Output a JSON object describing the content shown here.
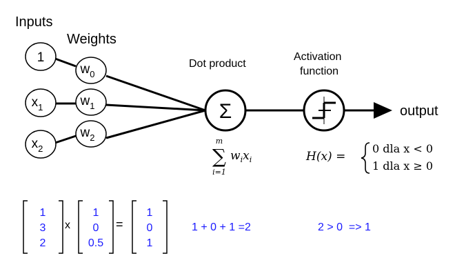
{
  "labels": {
    "inputs": "Inputs",
    "weights": "Weights",
    "dot_product": "Dot product",
    "activation_line1": "Activation",
    "activation_line2": "function",
    "output": "output"
  },
  "inputs": [
    {
      "base": "1",
      "sub": ""
    },
    {
      "base": "x",
      "sub": "1"
    },
    {
      "base": "x",
      "sub": "2"
    }
  ],
  "weights": [
    {
      "base": "w",
      "sub": "0"
    },
    {
      "base": "w",
      "sub": "1"
    },
    {
      "base": "w",
      "sub": "2"
    }
  ],
  "sum_symbol": "Σ",
  "formula_sum": {
    "upper": "m",
    "sigma": "∑",
    "lower": "i=1",
    "term_w": "w",
    "term_w_sub": "i",
    "term_x": "x",
    "term_x_sub": "i"
  },
  "formula_h": {
    "lhs": "H(x) =",
    "case1": "0 dla x < 0",
    "case2": "1 dla x ≥ 0"
  },
  "example": {
    "vector_a": [
      "1",
      "3",
      "2"
    ],
    "operator_x": "x",
    "vector_b": [
      "1",
      "0",
      "0.5"
    ],
    "operator_eq": "=",
    "vector_c": [
      "1",
      "0",
      "1"
    ],
    "sum_text": "1 + 0 + 1 =2",
    "compare_text": "2 > 0  => 1"
  },
  "colors": {
    "line": "#000000",
    "example_text": "#1a1aff"
  }
}
